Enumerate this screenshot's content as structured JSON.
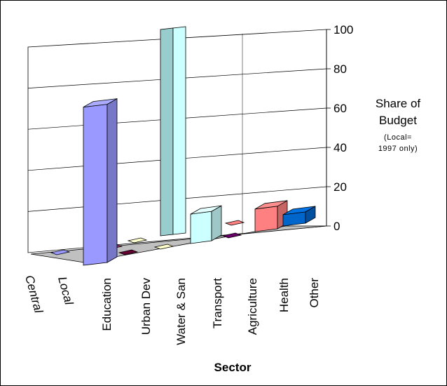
{
  "chart_data": {
    "type": "bar",
    "subtype": "3d-clustered-column",
    "title": "",
    "xlabel": "Sector",
    "ylabel": "Share of Budget",
    "ylabel_note": "(Local=\n1997 only)",
    "ylim": [
      0,
      100
    ],
    "yticks": [
      "0",
      "20",
      "40",
      "60",
      "80",
      "100"
    ],
    "categories": [
      "Education",
      "Urban Dev",
      "Water & San",
      "Transport",
      "Agriculture",
      "Health",
      "Other"
    ],
    "series": [
      {
        "name": "Central",
        "colors": [
          "#9999ff",
          "#993366",
          "#ffffcc",
          "#ccffff",
          "#660066",
          "#ff8080",
          "#0066cc"
        ],
        "values": [
          0,
          0,
          0,
          0,
          0,
          0,
          0
        ]
      },
      {
        "name": "Local",
        "colors": [
          "#9999ff",
          "#993366",
          "#ffffcc",
          "#ccffff",
          "#660066",
          "#ff8080",
          "#0066cc"
        ],
        "values": [
          70,
          0,
          0,
          13,
          0,
          10,
          5
        ]
      }
    ],
    "grid": true,
    "legend": "none"
  }
}
